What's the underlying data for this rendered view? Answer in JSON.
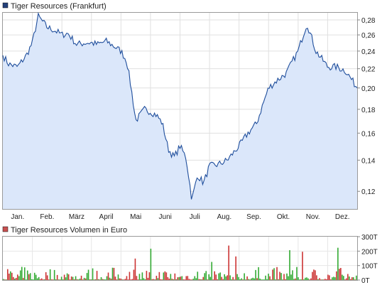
{
  "chart_data": [
    {
      "type": "area",
      "legend": "Tiger Resources (Frankfurt)",
      "legend_position": "top-left",
      "x_tick_labels": [
        "Jan.",
        "Feb.",
        "März",
        "April",
        "Mai",
        "Juni",
        "Juli",
        "Aug.",
        "Sep.",
        "Okt.",
        "Nov.",
        "Dez."
      ],
      "y_tick_labels": [
        "0,28",
        "0,26",
        "0,24",
        "0,22",
        "0,20",
        "0,18",
        "0,16",
        "0,14",
        "0,12"
      ],
      "y_ticks": [
        0.28,
        0.26,
        0.24,
        0.22,
        0.2,
        0.18,
        0.16,
        0.14,
        0.12
      ],
      "y_scale": "log",
      "ylim": [
        0.11,
        0.29
      ],
      "grid": true,
      "x": [
        0,
        0.2,
        0.5,
        0.8,
        1.0,
        1.2,
        1.5,
        1.8,
        2.0,
        2.2,
        2.5,
        2.8,
        3.0,
        3.2,
        3.5,
        3.8,
        4.0,
        4.2,
        4.5,
        4.8,
        5.0,
        5.2,
        5.4,
        5.6,
        5.8,
        6.0,
        6.2,
        6.4,
        6.6,
        6.8,
        7.0,
        7.3,
        7.6,
        8.0,
        8.3,
        8.6,
        9.0,
        9.3,
        9.6,
        10.0,
        10.3,
        10.6,
        11.0,
        11.3,
        11.6,
        12.0
      ],
      "values": [
        0.235,
        0.225,
        0.222,
        0.235,
        0.25,
        0.285,
        0.27,
        0.265,
        0.26,
        0.262,
        0.248,
        0.25,
        0.25,
        0.248,
        0.252,
        0.245,
        0.24,
        0.228,
        0.17,
        0.18,
        0.178,
        0.175,
        0.168,
        0.148,
        0.142,
        0.15,
        0.142,
        0.115,
        0.13,
        0.125,
        0.136,
        0.137,
        0.14,
        0.15,
        0.16,
        0.168,
        0.2,
        0.208,
        0.215,
        0.24,
        0.275,
        0.24,
        0.222,
        0.222,
        0.218,
        0.2
      ],
      "line_color": "#1f4e9c",
      "fill_color": "#dbe7fa",
      "legend_marker_color": "#23407a"
    },
    {
      "type": "bar",
      "legend": "Tiger Resources Volumen in Euro",
      "legend_position": "top-left",
      "y_tick_labels": [
        "300T",
        "200T",
        "100T",
        "0T"
      ],
      "y_ticks": [
        300,
        200,
        100,
        0
      ],
      "ylim": [
        0,
        300
      ],
      "up_color": "#33aa33",
      "down_color": "#cc3333",
      "legend_marker_color": "#c85050"
    }
  ]
}
